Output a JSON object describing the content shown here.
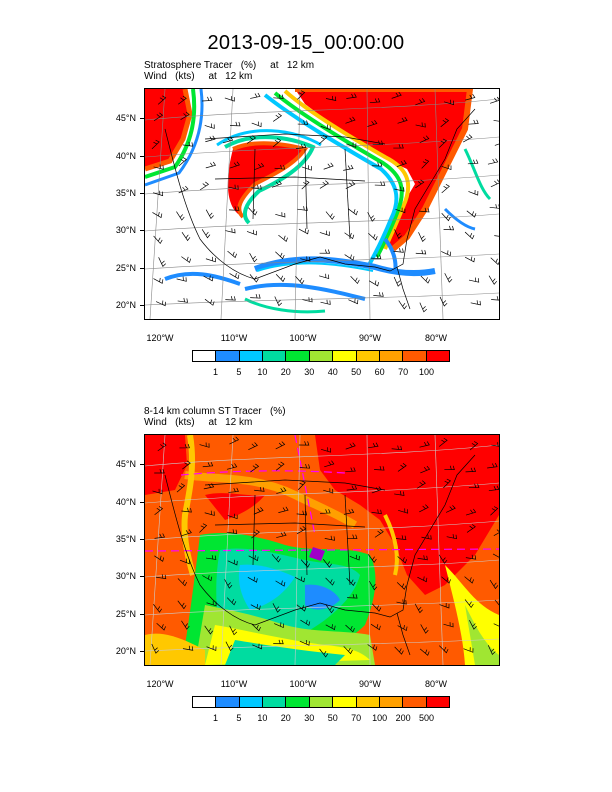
{
  "title": "2013-09-15_00:00:00",
  "panels": [
    {
      "subtitle1": "Stratosphere Tracer   (%)     at   12 km",
      "subtitle2": "Wind   (kts)     at   12 km",
      "lat_labels": [
        "45°N",
        "40°N",
        "35°N",
        "30°N",
        "25°N",
        "20°N"
      ],
      "lon_labels": [
        "120°W",
        "110°W",
        "100°W",
        "90°W",
        "80°W"
      ],
      "colorbar_labels": [
        "1",
        "5",
        "10",
        "20",
        "30",
        "40",
        "50",
        "60",
        "70",
        "100"
      ]
    },
    {
      "subtitle1": "8-14 km column ST Tracer   (%)",
      "subtitle2": "Wind   (kts)     at   12 km",
      "lat_labels": [
        "45°N",
        "40°N",
        "35°N",
        "30°N",
        "25°N",
        "20°N"
      ],
      "lon_labels": [
        "120°W",
        "110°W",
        "100°W",
        "90°W",
        "80°W"
      ],
      "colorbar_labels": [
        "1",
        "5",
        "10",
        "20",
        "30",
        "50",
        "70",
        "100",
        "200",
        "500"
      ]
    }
  ],
  "colorbar_colors": [
    "#ffffff",
    "#1e8cff",
    "#00c8ff",
    "#00dca0",
    "#00e632",
    "#a0e632",
    "#ffff00",
    "#ffc800",
    "#ffa000",
    "#ff5a00",
    "#ff0000"
  ]
}
